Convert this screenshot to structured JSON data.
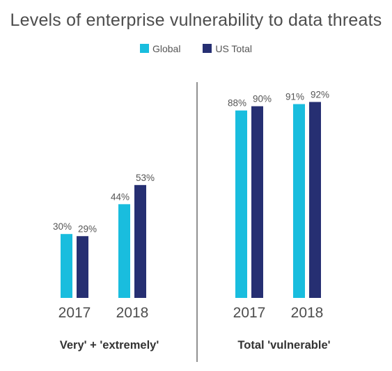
{
  "title": "Levels of enterprise vulnerability to data threats",
  "legend": [
    {
      "label": "Global",
      "color": "#19bdde"
    },
    {
      "label": "US Total",
      "color": "#262f72"
    }
  ],
  "colors": {
    "global": "#19bdde",
    "us_total": "#262f72",
    "divider": "#6d6d6d"
  },
  "chart_data": [
    {
      "type": "bar",
      "group_label": "Very' + 'extremely'",
      "categories": [
        "2017",
        "2018"
      ],
      "series": [
        {
          "name": "Global",
          "values": [
            30,
            44
          ]
        },
        {
          "name": "US Total",
          "values": [
            29,
            53
          ]
        }
      ],
      "data_labels": [
        [
          "30%",
          "29%"
        ],
        [
          "44%",
          "53%"
        ]
      ],
      "unit": "%"
    },
    {
      "type": "bar",
      "group_label": "Total 'vulnerable'",
      "categories": [
        "2017",
        "2018"
      ],
      "series": [
        {
          "name": "Global",
          "values": [
            88,
            91
          ]
        },
        {
          "name": "US Total",
          "values": [
            90,
            92
          ]
        }
      ],
      "data_labels": [
        [
          "88%",
          "90%"
        ],
        [
          "91%",
          "92%"
        ]
      ],
      "unit": "%"
    }
  ]
}
